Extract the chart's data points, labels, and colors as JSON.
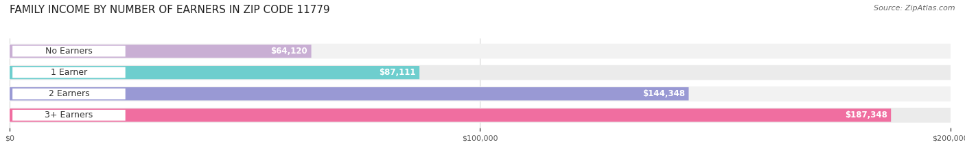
{
  "title": "FAMILY INCOME BY NUMBER OF EARNERS IN ZIP CODE 11779",
  "source": "Source: ZipAtlas.com",
  "categories": [
    "No Earners",
    "1 Earner",
    "2 Earners",
    "3+ Earners"
  ],
  "values": [
    64120,
    87111,
    144348,
    187348
  ],
  "value_labels": [
    "$64,120",
    "$87,111",
    "$144,348",
    "$187,348"
  ],
  "bar_colors": [
    "#c9afd4",
    "#6ecece",
    "#9999d4",
    "#f06ea0"
  ],
  "row_bg_colors": [
    "#f2f2f2",
    "#ebebeb",
    "#f2f2f2",
    "#ebebeb"
  ],
  "xmax": 200000,
  "xtick_labels": [
    "$0",
    "$100,000",
    "$200,000"
  ],
  "background_color": "#ffffff",
  "title_fontsize": 11,
  "label_fontsize": 9,
  "value_fontsize": 8.5,
  "source_fontsize": 8
}
